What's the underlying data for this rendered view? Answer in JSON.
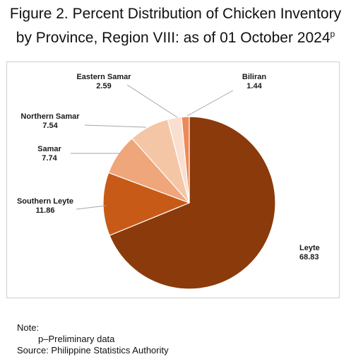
{
  "title": {
    "line1": "Figure 2. Percent Distribution of Chicken Inventory",
    "line2": "by Province, Region VIII: as of 01 October 2024",
    "sup": "p"
  },
  "chart_data": {
    "type": "pie",
    "title": "Figure 2. Percent Distribution of Chicken Inventory by Province, Region VIII: as of 01 October 2024p",
    "slices": [
      {
        "label": "Leyte",
        "value": 68.83,
        "color": "#8a3a0b"
      },
      {
        "label": "Southern Leyte",
        "value": 11.86,
        "color": "#c85a18"
      },
      {
        "label": "Samar",
        "value": 7.74,
        "color": "#efa67a"
      },
      {
        "label": "Northern Samar",
        "value": 7.54,
        "color": "#f5c6a6"
      },
      {
        "label": "Eastern Samar",
        "value": 2.59,
        "color": "#f9dfcf"
      },
      {
        "label": "Biliran",
        "value": 1.44,
        "color": "#ec8a5a"
      }
    ]
  },
  "notes": {
    "label": "Note:",
    "preliminary": "p–Preliminary data",
    "source": "Source: Philippine Statistics Authority"
  }
}
